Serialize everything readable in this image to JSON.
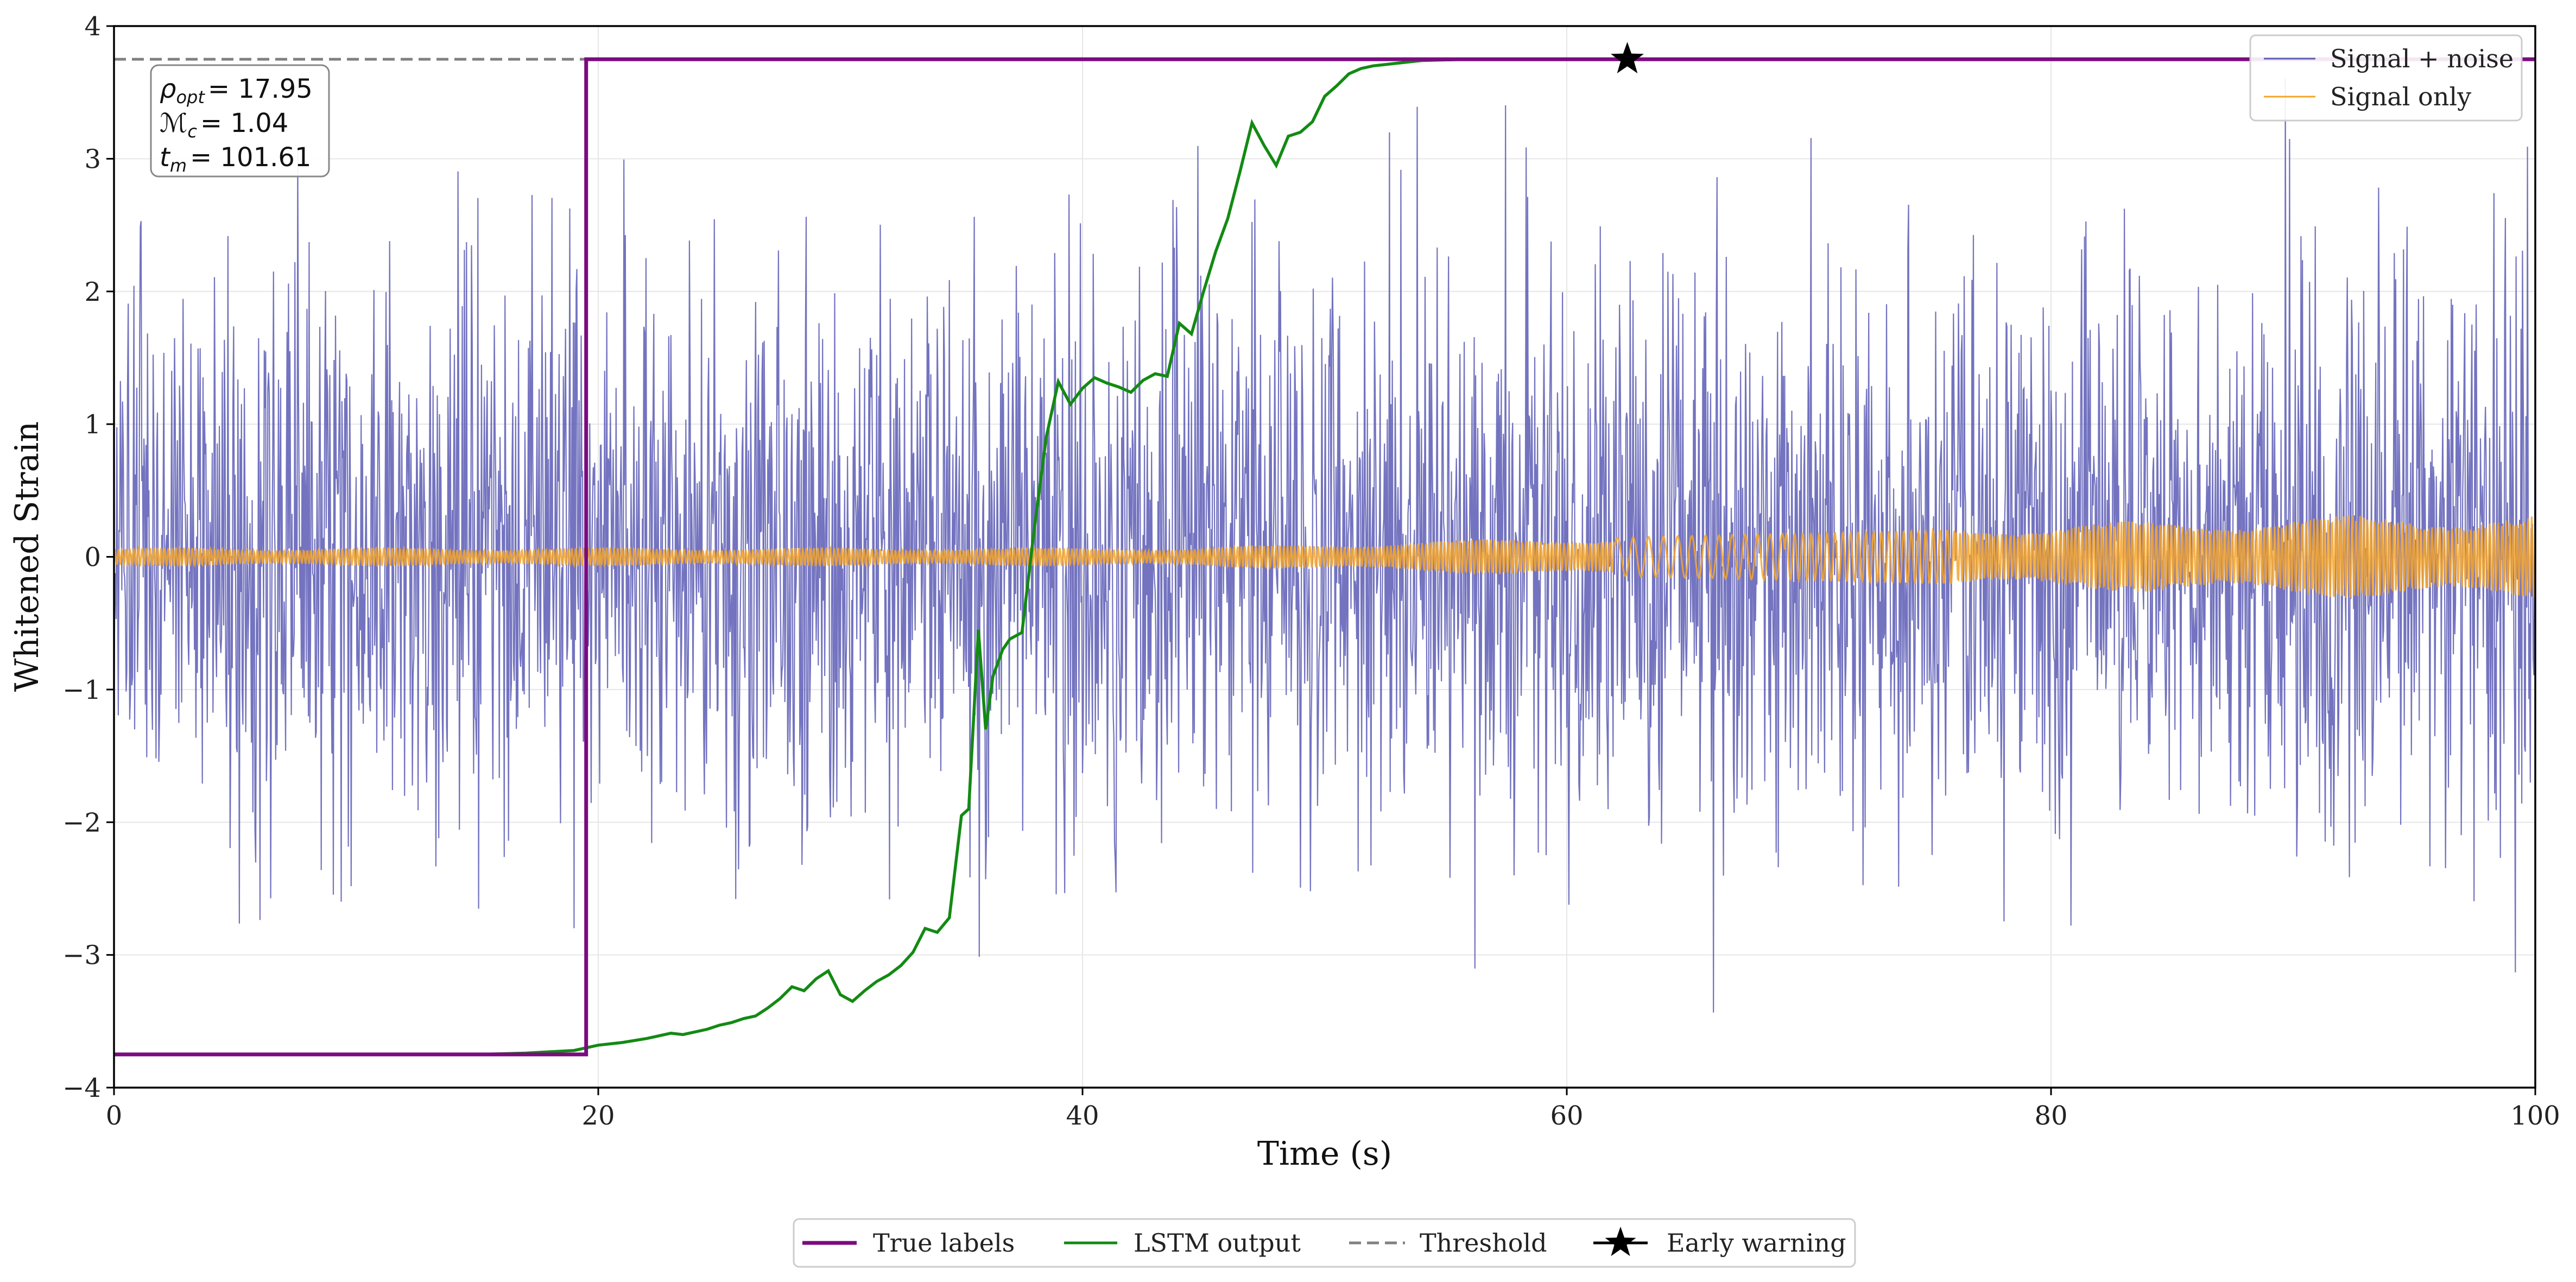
{
  "chart_data": {
    "type": "line",
    "title": "",
    "xlabel": "Time (s)",
    "ylabel": "Whitened Strain",
    "xlim": [
      0,
      100
    ],
    "ylim": [
      -4,
      4
    ],
    "x_ticks": [
      0,
      20,
      40,
      60,
      80,
      100
    ],
    "x_tick_labels": [
      "0",
      "20",
      "40",
      "60",
      "80",
      "100"
    ],
    "y_ticks": [
      -4,
      -3,
      -2,
      -1,
      0,
      1,
      2,
      3,
      4
    ],
    "y_tick_labels": [
      "−4",
      "−3",
      "−2",
      "−1",
      "0",
      "1",
      "2",
      "3",
      "4"
    ],
    "grid": true,
    "threshold": 3.75,
    "true_label_low": -3.75,
    "true_label_high": 3.75,
    "true_label_step_time": 19.5,
    "early_warning": {
      "time": 62.5,
      "value": 3.75
    },
    "lstm_output": {
      "x": [
        0,
        15,
        17,
        18,
        19,
        19.5,
        20,
        21,
        22,
        22.5,
        23,
        23.5,
        24,
        24.5,
        25,
        25.5,
        26,
        26.5,
        27,
        27.5,
        28,
        28.5,
        29,
        29.5,
        30,
        30.5,
        31,
        31.5,
        32,
        32.5,
        33,
        33.5,
        34,
        34.5,
        35,
        35.3,
        35.7,
        36,
        36.3,
        36.7,
        37,
        37.5,
        38,
        38.5,
        39,
        39.5,
        40,
        40.5,
        41,
        41.5,
        42,
        42.5,
        43,
        43.5,
        44,
        44.5,
        45,
        45.5,
        46,
        46.5,
        47,
        47.5,
        48,
        48.5,
        49,
        49.5,
        50,
        50.5,
        51,
        51.5,
        52,
        53,
        54,
        55,
        56,
        58,
        60,
        62.5,
        65,
        70,
        80,
        90,
        100
      ],
      "y": [
        -3.75,
        -3.75,
        -3.74,
        -3.73,
        -3.72,
        -3.7,
        -3.68,
        -3.66,
        -3.63,
        -3.61,
        -3.59,
        -3.6,
        -3.58,
        -3.56,
        -3.53,
        -3.51,
        -3.48,
        -3.46,
        -3.4,
        -3.33,
        -3.24,
        -3.27,
        -3.18,
        -3.12,
        -3.3,
        -3.35,
        -3.27,
        -3.2,
        -3.15,
        -3.08,
        -2.98,
        -2.8,
        -2.83,
        -2.72,
        -1.95,
        -1.9,
        -0.55,
        -1.3,
        -0.9,
        -0.7,
        -0.62,
        -0.57,
        0.2,
        0.9,
        1.32,
        1.15,
        1.27,
        1.35,
        1.31,
        1.28,
        1.24,
        1.33,
        1.38,
        1.36,
        1.76,
        1.68,
        2.0,
        2.3,
        2.55,
        2.9,
        3.27,
        3.1,
        2.95,
        3.17,
        3.2,
        3.28,
        3.47,
        3.55,
        3.64,
        3.68,
        3.7,
        3.72,
        3.74,
        3.745,
        3.75,
        3.75,
        3.75,
        3.75,
        3.75,
        3.75,
        3.75,
        3.75,
        3.75
      ]
    },
    "signal_noise_std": 1.05,
    "signal_base_amplitude": 0.07,
    "signal_late_amplitude": 0.32,
    "series_colors": {
      "signal_noise": "#5b5bb5",
      "signal_only": "#f5a52a",
      "true_labels": "#7b0b80",
      "lstm": "#138a13",
      "threshold": "#808080",
      "early_warning": "#000000"
    },
    "annotation": {
      "rho_symbol": "ρ",
      "rho_sub": "opt",
      "rho_value": "= 17.95",
      "mc_symbol": "ℳ",
      "mc_sub": "c",
      "mc_value": "= 1.04",
      "tm_symbol": "t",
      "tm_sub": "m",
      "tm_value": "= 101.61"
    },
    "legend_upper": [
      {
        "label": "Signal + noise"
      },
      {
        "label": "Signal only"
      }
    ],
    "legend_lower": [
      {
        "label": "True labels"
      },
      {
        "label": "LSTM output"
      },
      {
        "label": "Threshold"
      },
      {
        "label": "Early warning"
      }
    ]
  }
}
